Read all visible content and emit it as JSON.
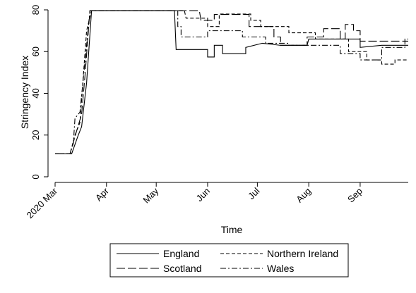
{
  "chart_data": {
    "type": "line",
    "xlabel": "Time",
    "ylabel": "Stringency Index",
    "xlim": [
      "2020-03-01",
      "2020-09-30"
    ],
    "ylim": [
      0,
      80
    ],
    "y_ticks": [
      0,
      20,
      40,
      60,
      80
    ],
    "x_ticks": [
      {
        "date": "2020-03-01",
        "label": "2020 Mar"
      },
      {
        "date": "2020-04-01",
        "label": "Apr"
      },
      {
        "date": "2020-05-01",
        "label": "May"
      },
      {
        "date": "2020-06-01",
        "label": "Jun"
      },
      {
        "date": "2020-07-01",
        "label": "Jul"
      },
      {
        "date": "2020-08-01",
        "label": "Aug"
      },
      {
        "date": "2020-09-01",
        "label": "Sep"
      }
    ],
    "grid": false,
    "legend_position": "bottom",
    "series": [
      {
        "name": "England",
        "dash": "solid",
        "points": [
          [
            "2020-03-01",
            11
          ],
          [
            "2020-03-11",
            11
          ],
          [
            "2020-03-15",
            20
          ],
          [
            "2020-03-17",
            24
          ],
          [
            "2020-03-20",
            45
          ],
          [
            "2020-03-23",
            79.6
          ],
          [
            "2020-05-12",
            79.6
          ],
          [
            "2020-05-13",
            61
          ],
          [
            "2020-06-01",
            61
          ],
          [
            "2020-06-01",
            57.4
          ],
          [
            "2020-06-05",
            57.4
          ],
          [
            "2020-06-05",
            63
          ],
          [
            "2020-06-10",
            63
          ],
          [
            "2020-06-10",
            59
          ],
          [
            "2020-06-24",
            59
          ],
          [
            "2020-06-24",
            62
          ],
          [
            "2020-07-04",
            64
          ],
          [
            "2020-07-15",
            63
          ],
          [
            "2020-07-31",
            63
          ],
          [
            "2020-08-01",
            66
          ],
          [
            "2020-09-01",
            66
          ],
          [
            "2020-09-01",
            62
          ],
          [
            "2020-09-14",
            63
          ],
          [
            "2020-09-30",
            63
          ]
        ]
      },
      {
        "name": "Northern Ireland",
        "dash": "dash",
        "points": [
          [
            "2020-03-01",
            11
          ],
          [
            "2020-03-10",
            11
          ],
          [
            "2020-03-13",
            20
          ],
          [
            "2020-03-16",
            26
          ],
          [
            "2020-03-20",
            70
          ],
          [
            "2020-03-23",
            79.6
          ],
          [
            "2020-05-18",
            79.6
          ],
          [
            "2020-05-19",
            76
          ],
          [
            "2020-06-01",
            76
          ],
          [
            "2020-06-01",
            72
          ],
          [
            "2020-06-08",
            72
          ],
          [
            "2020-06-08",
            78
          ],
          [
            "2020-06-27",
            78
          ],
          [
            "2020-06-27",
            75
          ],
          [
            "2020-07-03",
            75
          ],
          [
            "2020-07-03",
            72
          ],
          [
            "2020-07-20",
            72
          ],
          [
            "2020-07-20",
            69
          ],
          [
            "2020-08-05",
            69
          ],
          [
            "2020-08-05",
            66
          ],
          [
            "2020-08-25",
            66
          ],
          [
            "2020-08-25",
            60
          ],
          [
            "2020-09-05",
            60
          ],
          [
            "2020-09-05",
            56
          ],
          [
            "2020-09-14",
            56
          ],
          [
            "2020-09-14",
            54
          ],
          [
            "2020-09-22",
            54
          ],
          [
            "2020-09-22",
            56
          ],
          [
            "2020-09-30",
            56
          ]
        ]
      },
      {
        "name": "Scotland",
        "dash": "longdash",
        "points": [
          [
            "2020-03-01",
            11
          ],
          [
            "2020-03-10",
            11
          ],
          [
            "2020-03-14",
            22
          ],
          [
            "2020-03-17",
            30
          ],
          [
            "2020-03-19",
            48
          ],
          [
            "2020-03-22",
            79.6
          ],
          [
            "2020-05-27",
            79.6
          ],
          [
            "2020-05-28",
            75
          ],
          [
            "2020-06-05",
            75
          ],
          [
            "2020-06-05",
            77.8
          ],
          [
            "2020-06-26",
            77.8
          ],
          [
            "2020-06-26",
            72
          ],
          [
            "2020-07-11",
            72
          ],
          [
            "2020-07-11",
            67
          ],
          [
            "2020-07-15",
            67
          ],
          [
            "2020-07-15",
            63
          ],
          [
            "2020-07-31",
            63
          ],
          [
            "2020-07-31",
            67
          ],
          [
            "2020-08-10",
            67
          ],
          [
            "2020-08-10",
            71
          ],
          [
            "2020-08-20",
            71
          ],
          [
            "2020-08-20",
            66
          ],
          [
            "2020-08-23",
            66
          ],
          [
            "2020-08-23",
            73
          ],
          [
            "2020-08-28",
            73
          ],
          [
            "2020-08-28",
            70
          ],
          [
            "2020-09-01",
            70
          ],
          [
            "2020-09-01",
            65
          ],
          [
            "2020-09-30",
            65
          ]
        ]
      },
      {
        "name": "Wales",
        "dash": "dashdot",
        "points": [
          [
            "2020-03-01",
            11
          ],
          [
            "2020-03-10",
            11
          ],
          [
            "2020-03-12",
            16
          ],
          [
            "2020-03-13",
            28
          ],
          [
            "2020-03-16",
            31
          ],
          [
            "2020-03-19",
            55
          ],
          [
            "2020-03-22",
            79.6
          ],
          [
            "2020-05-14",
            79.6
          ],
          [
            "2020-05-14",
            72
          ],
          [
            "2020-05-16",
            72
          ],
          [
            "2020-05-16",
            67
          ],
          [
            "2020-06-01",
            67
          ],
          [
            "2020-06-01",
            70
          ],
          [
            "2020-06-22",
            70
          ],
          [
            "2020-06-22",
            67
          ],
          [
            "2020-07-06",
            67
          ],
          [
            "2020-07-06",
            64
          ],
          [
            "2020-07-20",
            64
          ],
          [
            "2020-07-20",
            63
          ],
          [
            "2020-08-20",
            63
          ],
          [
            "2020-08-20",
            59
          ],
          [
            "2020-09-01",
            59
          ],
          [
            "2020-09-01",
            56
          ],
          [
            "2020-09-14",
            56
          ],
          [
            "2020-09-14",
            62
          ],
          [
            "2020-09-28",
            62
          ],
          [
            "2020-09-28",
            66
          ],
          [
            "2020-09-30",
            66
          ]
        ]
      }
    ]
  }
}
